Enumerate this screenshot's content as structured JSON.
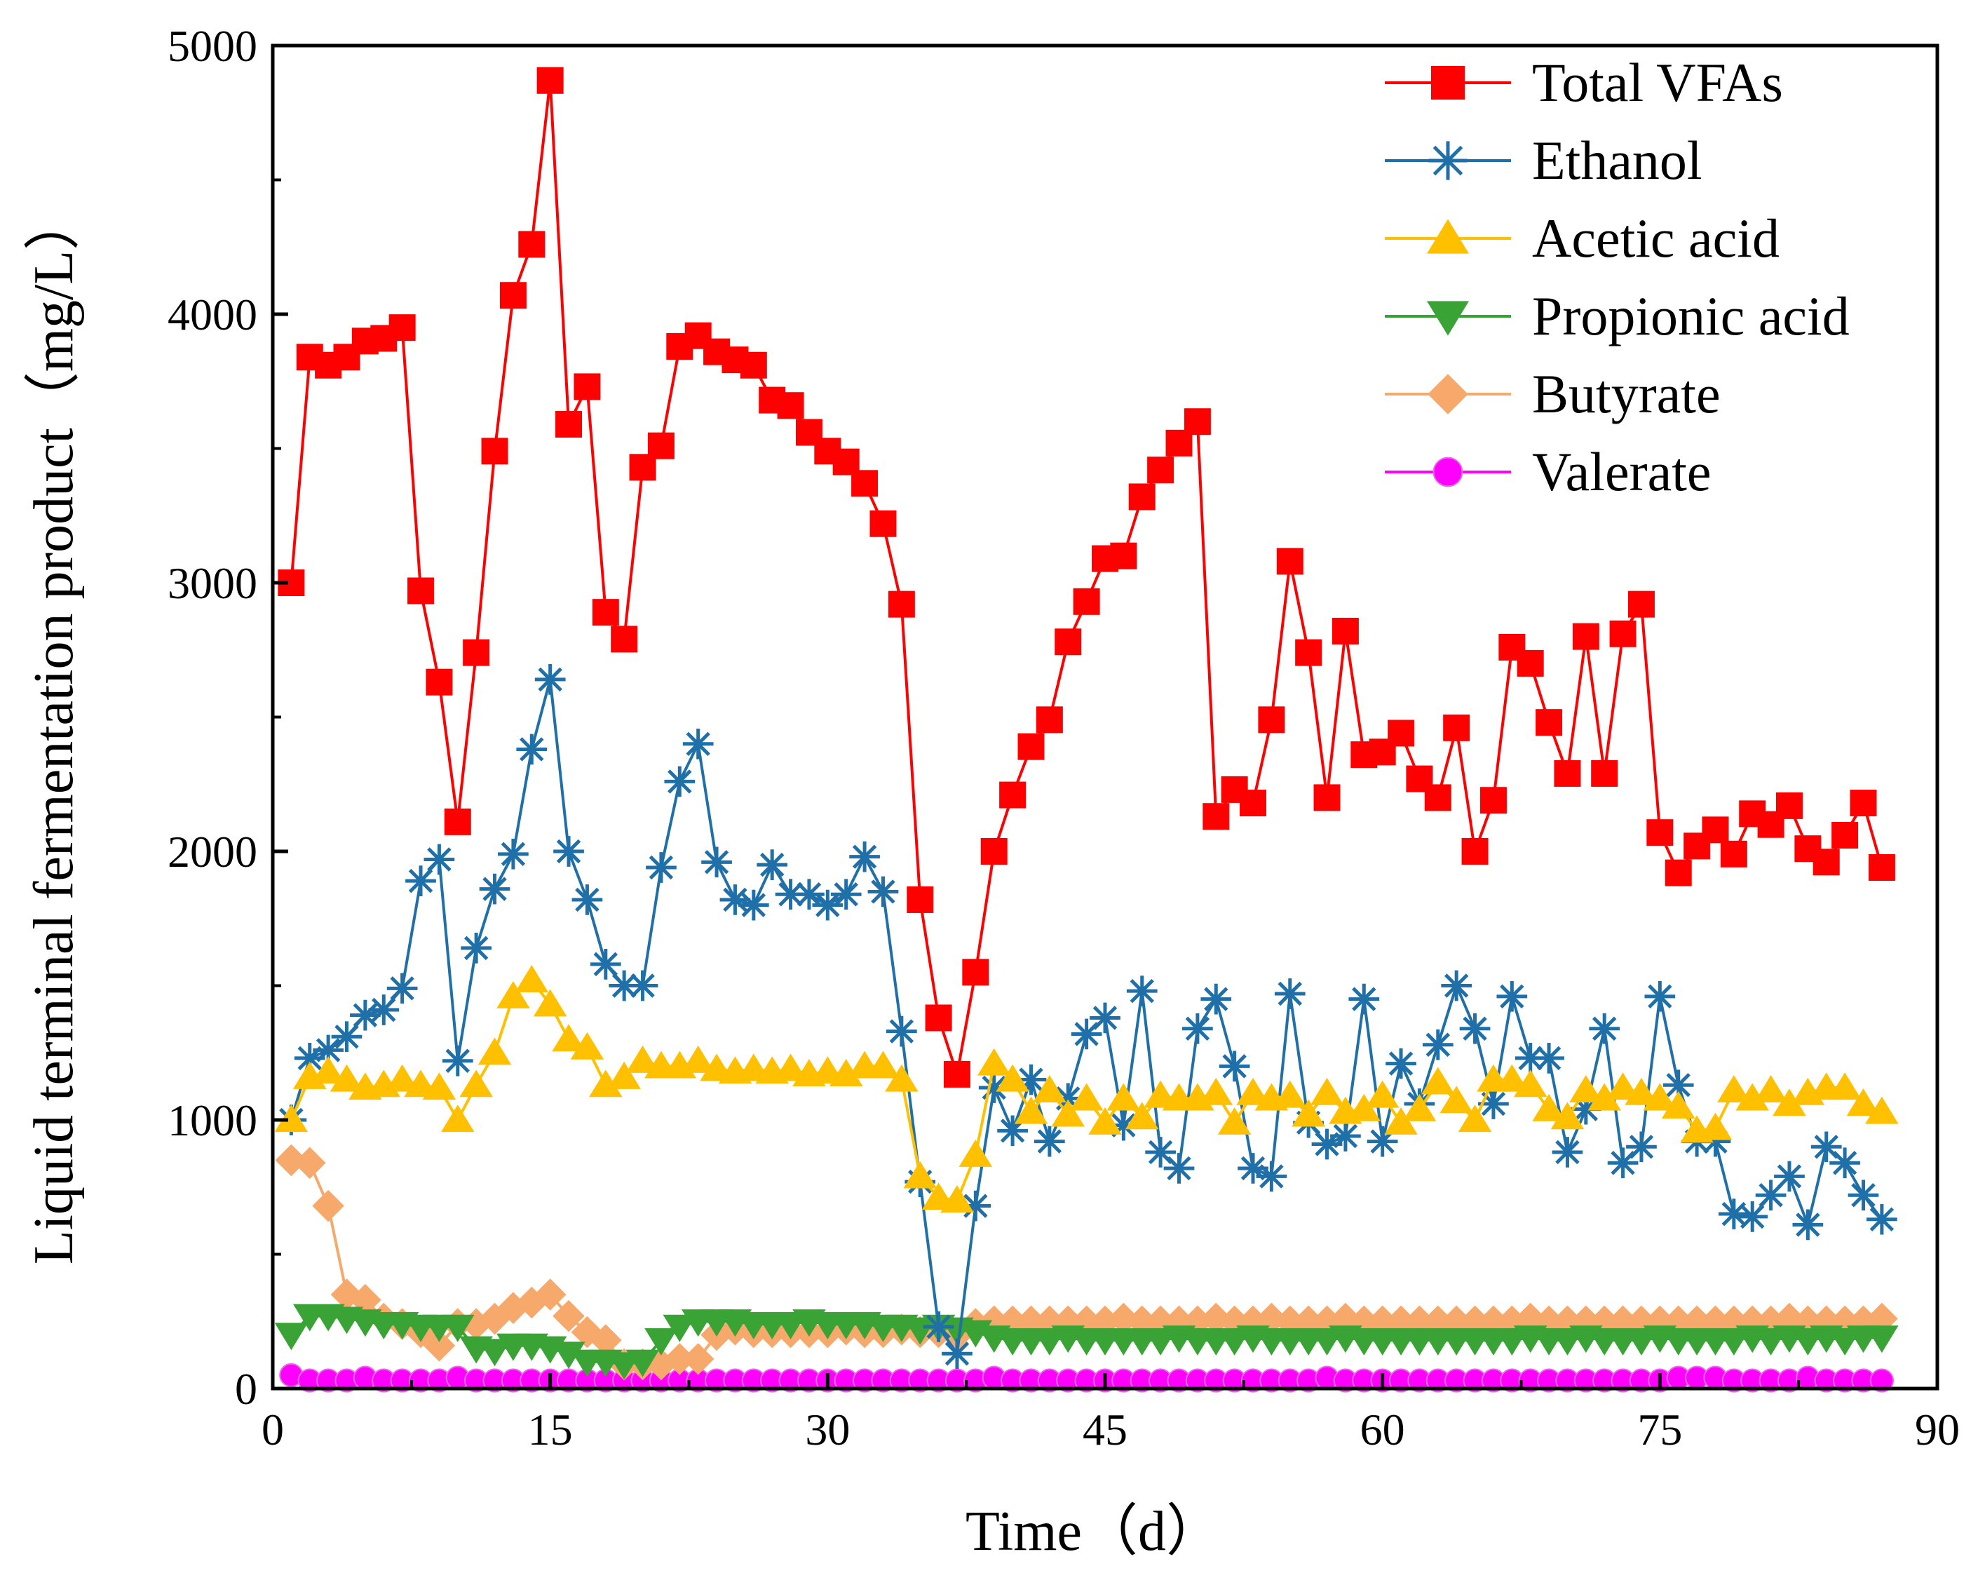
{
  "chart_data": {
    "type": "line",
    "title": "",
    "xlabel": "Time（d）",
    "ylabel": "Liquid terminal fermentation product（mg/L）",
    "xlim": [
      0,
      90
    ],
    "ylim": [
      0,
      5000
    ],
    "xticks": [
      0,
      15,
      30,
      45,
      60,
      75,
      90
    ],
    "yticks": [
      0,
      1000,
      2000,
      3000,
      4000,
      5000
    ],
    "grid": false,
    "legend_position": "top-right",
    "x": [
      1,
      2,
      3,
      4,
      5,
      6,
      7,
      8,
      9,
      10,
      11,
      12,
      13,
      14,
      15,
      16,
      17,
      18,
      19,
      20,
      21,
      22,
      23,
      24,
      25,
      26,
      27,
      28,
      29,
      30,
      31,
      32,
      33,
      34,
      35,
      36,
      37,
      38,
      39,
      40,
      41,
      42,
      43,
      44,
      45,
      46,
      47,
      48,
      49,
      50,
      51,
      52,
      53,
      54,
      55,
      56,
      57,
      58,
      59,
      60,
      61,
      62,
      63,
      64,
      65,
      66,
      67,
      68,
      69,
      70,
      71,
      72,
      73,
      74,
      75,
      76,
      77,
      78,
      79,
      80,
      81,
      82,
      83,
      84,
      85,
      86,
      87
    ],
    "series": [
      {
        "name": "Total VFAs",
        "color": "#ff0000",
        "marker": "square",
        "values": [
          3000,
          3840,
          3810,
          3840,
          3900,
          3910,
          3950,
          2970,
          2630,
          2110,
          2740,
          3490,
          4070,
          4260,
          4870,
          3590,
          3730,
          2890,
          2790,
          3430,
          3510,
          3880,
          3920,
          3860,
          3830,
          3810,
          3680,
          3660,
          3560,
          3490,
          3450,
          3370,
          3220,
          2920,
          1820,
          1380,
          1170,
          1550,
          2000,
          2210,
          2390,
          2490,
          2780,
          2930,
          3090,
          3100,
          3320,
          3420,
          3520,
          3600,
          2130,
          2230,
          2180,
          2490,
          3080,
          2740,
          2200,
          2820,
          2360,
          2370,
          2440,
          2270,
          2200,
          2460,
          2000,
          2190,
          2760,
          2700,
          2480,
          2290,
          2800,
          2290,
          2810,
          2920,
          2070,
          1920,
          2020,
          2080,
          1990,
          2140,
          2100,
          2170,
          2010,
          1960,
          2060,
          2180,
          1940
        ]
      },
      {
        "name": "Ethanol",
        "color": "#1f6fa8",
        "marker": "asterisk",
        "values": [
          1000,
          1230,
          1260,
          1310,
          1390,
          1410,
          1490,
          1890,
          1970,
          1220,
          1640,
          1860,
          1990,
          2380,
          2640,
          2000,
          1820,
          1580,
          1500,
          1500,
          1940,
          2260,
          2400,
          1960,
          1820,
          1800,
          1950,
          1840,
          1840,
          1800,
          1840,
          1980,
          1850,
          1330,
          770,
          230,
          130,
          680,
          1120,
          960,
          1150,
          920,
          1080,
          1320,
          1380,
          980,
          1480,
          880,
          820,
          1340,
          1450,
          1200,
          820,
          790,
          1470,
          990,
          910,
          940,
          1450,
          920,
          1210,
          1060,
          1280,
          1500,
          1340,
          1060,
          1460,
          1230,
          1230,
          880,
          1040,
          1340,
          840,
          900,
          1460,
          1130,
          920,
          920,
          650,
          640,
          720,
          790,
          610,
          900,
          840,
          720,
          630
        ]
      },
      {
        "name": "Acetic acid",
        "color": "#ffc000",
        "marker": "triangle-up",
        "values": [
          1000,
          1160,
          1180,
          1150,
          1120,
          1130,
          1150,
          1130,
          1120,
          1000,
          1130,
          1250,
          1460,
          1520,
          1430,
          1300,
          1270,
          1130,
          1160,
          1220,
          1200,
          1200,
          1220,
          1190,
          1180,
          1190,
          1180,
          1190,
          1170,
          1180,
          1170,
          1200,
          1200,
          1150,
          790,
          710,
          700,
          870,
          1210,
          1150,
          1030,
          1110,
          1020,
          1080,
          990,
          1080,
          1010,
          1090,
          1080,
          1080,
          1100,
          990,
          1100,
          1080,
          1090,
          1020,
          1100,
          1030,
          1040,
          1090,
          990,
          1040,
          1140,
          1070,
          1000,
          1150,
          1150,
          1130,
          1040,
          1010,
          1110,
          1080,
          1120,
          1100,
          1080,
          1050,
          960,
          970,
          1110,
          1080,
          1110,
          1060,
          1100,
          1120,
          1120,
          1060,
          1030
        ]
      },
      {
        "name": "Propionic acid",
        "color": "#3aa335",
        "marker": "triangle-down",
        "values": [
          200,
          270,
          270,
          260,
          250,
          240,
          240,
          230,
          230,
          230,
          150,
          140,
          160,
          160,
          150,
          130,
          100,
          100,
          90,
          100,
          180,
          230,
          250,
          250,
          250,
          240,
          240,
          240,
          250,
          240,
          240,
          240,
          230,
          230,
          220,
          230,
          220,
          210,
          190,
          180,
          180,
          180,
          190,
          180,
          180,
          180,
          180,
          180,
          190,
          180,
          180,
          180,
          190,
          180,
          180,
          180,
          180,
          190,
          180,
          180,
          180,
          180,
          180,
          180,
          180,
          180,
          180,
          190,
          180,
          180,
          190,
          180,
          180,
          180,
          190,
          180,
          180,
          180,
          180,
          190,
          180,
          190,
          180,
          190,
          180,
          190,
          190
        ]
      },
      {
        "name": "Butyrate",
        "color": "#f6a96b",
        "marker": "diamond",
        "values": [
          850,
          840,
          680,
          350,
          330,
          260,
          240,
          210,
          160,
          240,
          240,
          260,
          300,
          320,
          350,
          270,
          210,
          180,
          90,
          90,
          90,
          110,
          110,
          200,
          220,
          210,
          210,
          210,
          210,
          210,
          220,
          210,
          210,
          220,
          210,
          210,
          200,
          240,
          250,
          250,
          250,
          250,
          250,
          250,
          250,
          260,
          250,
          250,
          250,
          250,
          260,
          250,
          250,
          260,
          250,
          250,
          250,
          260,
          250,
          250,
          250,
          250,
          250,
          250,
          250,
          250,
          250,
          260,
          250,
          250,
          250,
          250,
          250,
          250,
          250,
          250,
          250,
          250,
          250,
          250,
          250,
          260,
          250,
          250,
          250,
          250,
          260
        ]
      },
      {
        "name": "Valerate",
        "color": "#ff00ff",
        "marker": "circle",
        "values": [
          50,
          30,
          30,
          30,
          40,
          30,
          30,
          30,
          30,
          40,
          30,
          30,
          30,
          30,
          30,
          30,
          30,
          30,
          30,
          30,
          30,
          30,
          30,
          30,
          30,
          30,
          30,
          30,
          30,
          30,
          30,
          30,
          30,
          30,
          30,
          30,
          30,
          30,
          40,
          30,
          30,
          30,
          30,
          30,
          30,
          30,
          30,
          30,
          30,
          30,
          30,
          30,
          30,
          30,
          30,
          30,
          40,
          30,
          30,
          30,
          30,
          30,
          30,
          30,
          30,
          30,
          30,
          30,
          30,
          30,
          30,
          30,
          30,
          30,
          30,
          40,
          40,
          40,
          30,
          30,
          30,
          30,
          40,
          30,
          30,
          30,
          30
        ]
      }
    ]
  }
}
